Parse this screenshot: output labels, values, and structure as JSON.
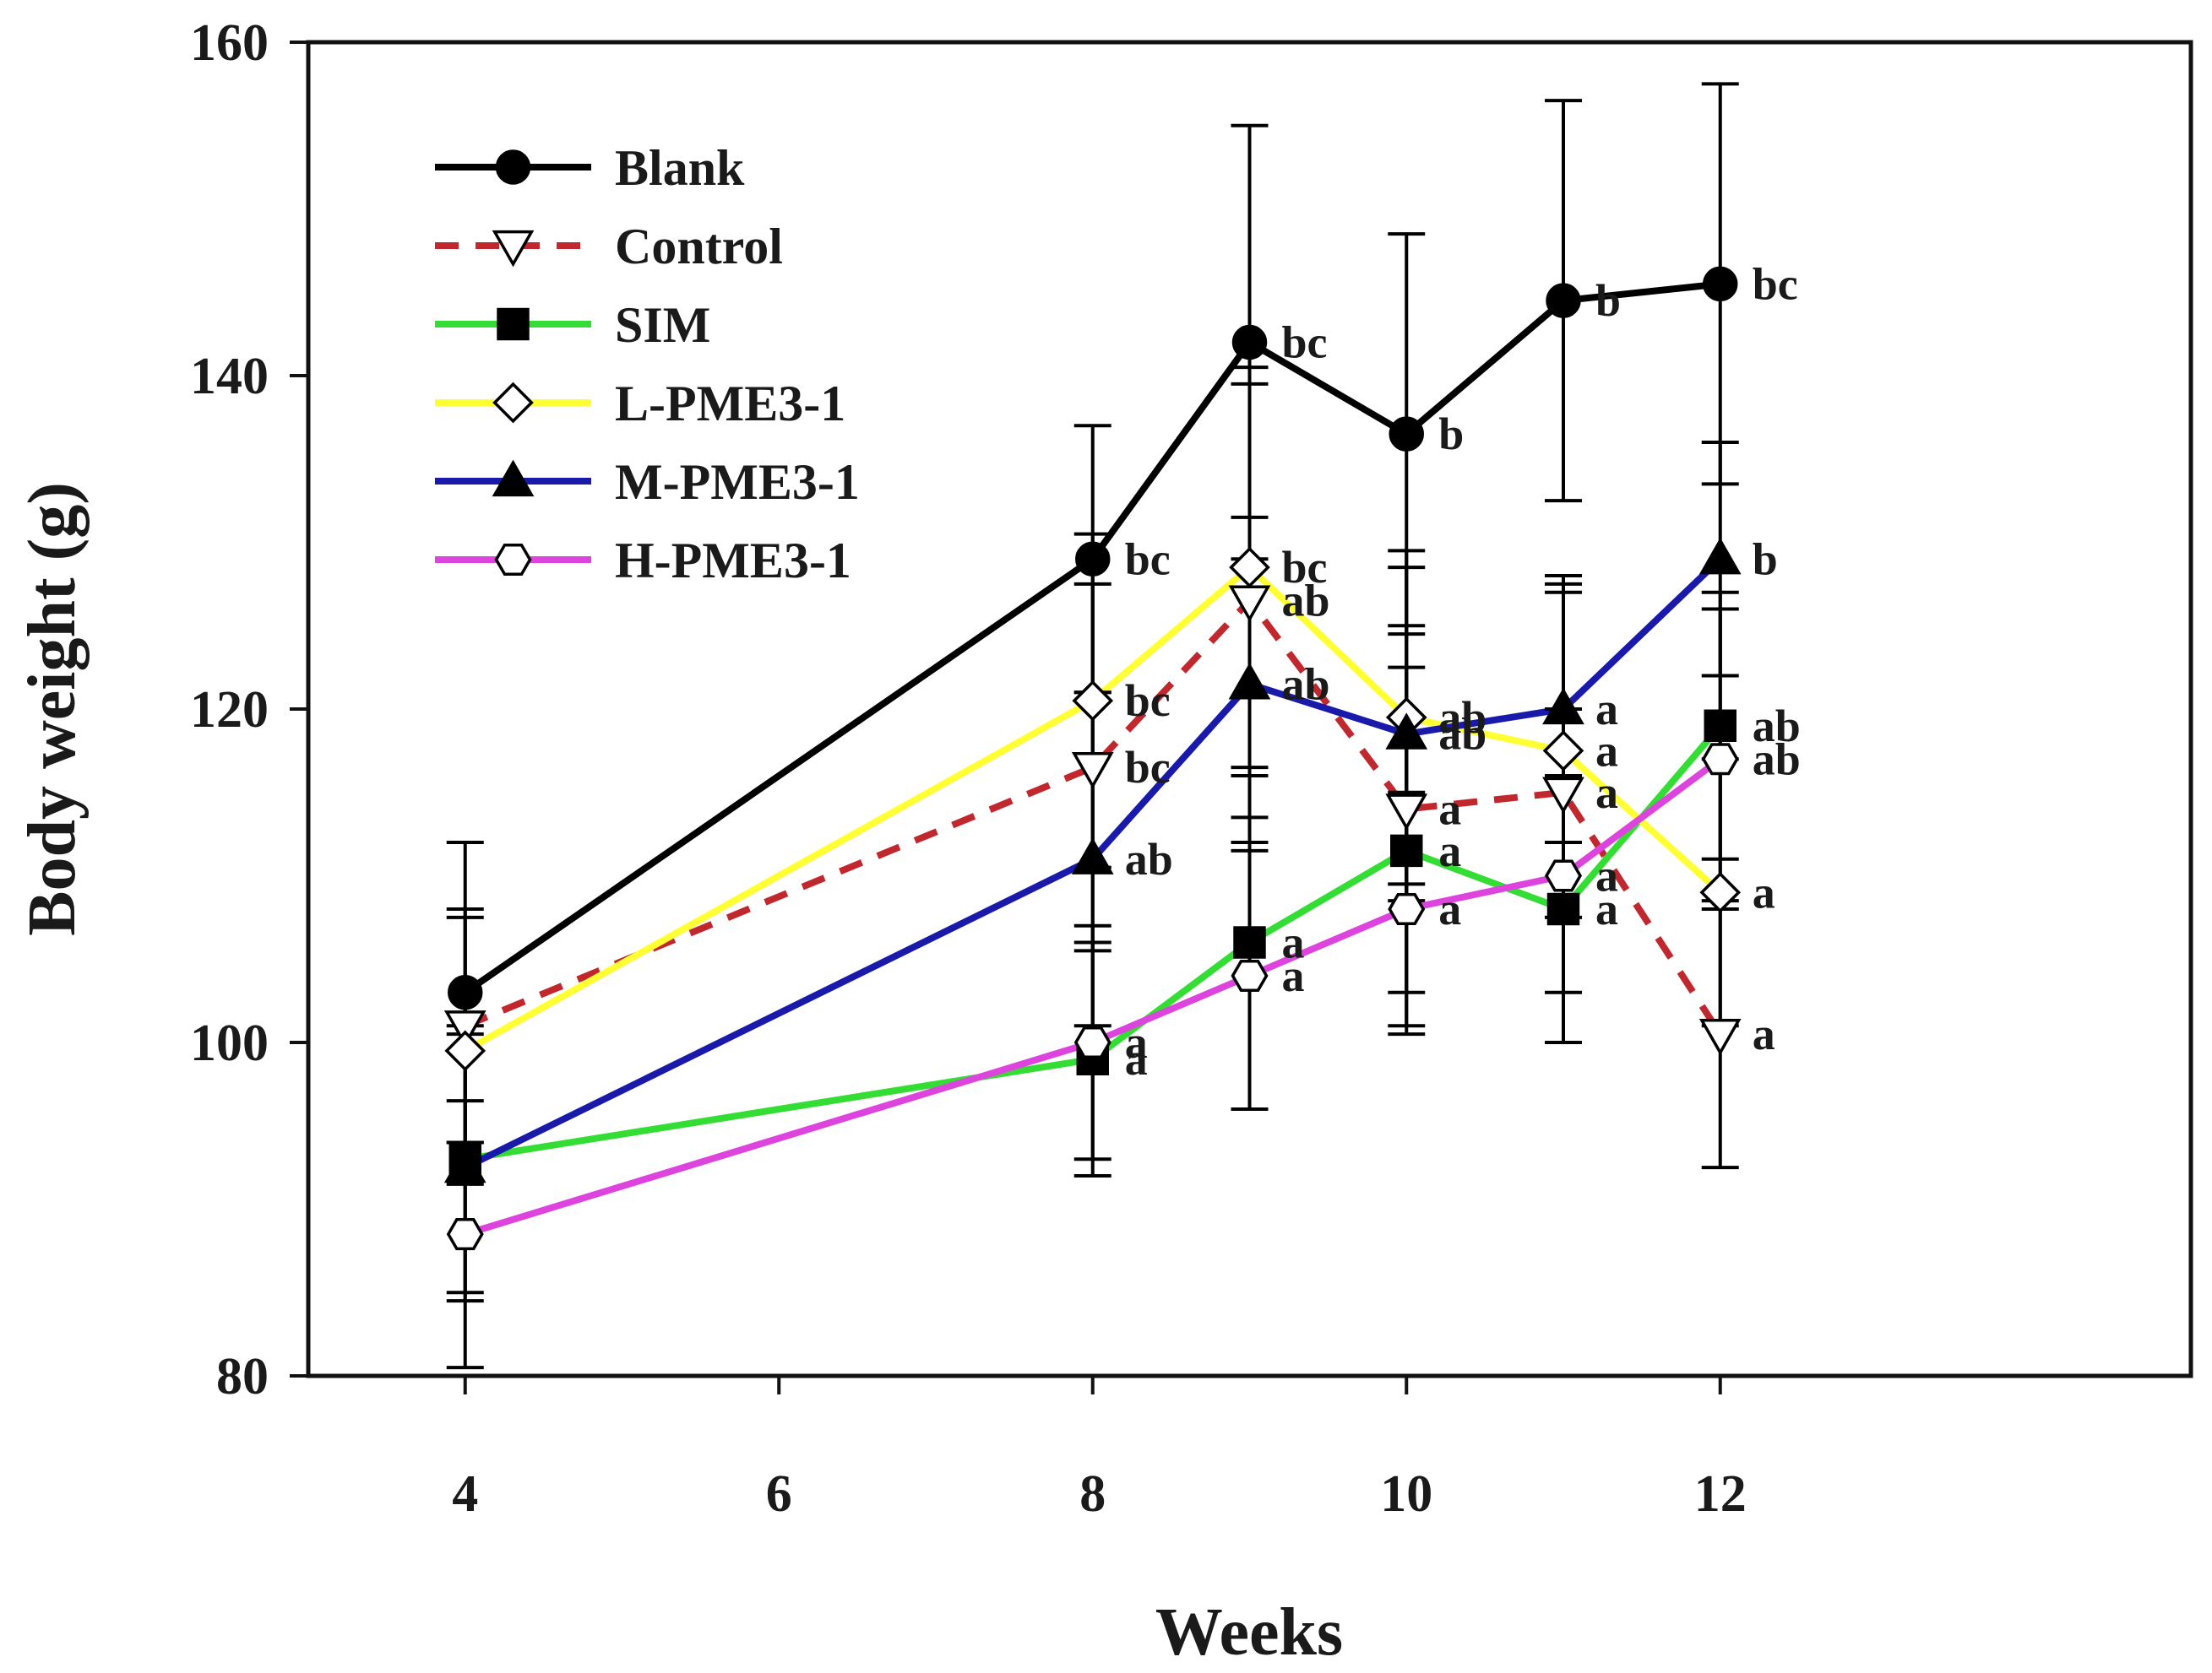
{
  "chart_data": {
    "type": "line",
    "title": "",
    "xlabel": "Weeks",
    "ylabel": "Body weight (g)",
    "xlim": [
      3,
      15
    ],
    "ylim": [
      80,
      160
    ],
    "xticks": [
      4,
      6,
      8,
      10,
      12
    ],
    "yticks": [
      80,
      100,
      120,
      140,
      160
    ],
    "x": [
      4,
      8,
      9,
      10,
      11,
      12
    ],
    "legend_position": "top-left",
    "grid": false,
    "series": [
      {
        "name": "Blank",
        "color": "#000000",
        "dash": "solid",
        "marker": "circle-filled",
        "values": [
          103,
          129,
          142,
          136.5,
          144.5,
          145.5
        ],
        "errors": [
          9,
          8,
          13,
          12,
          12,
          12
        ],
        "labels": [
          "",
          "bc",
          "bc",
          "b",
          "b",
          "bc"
        ]
      },
      {
        "name": "Control",
        "color": "#c0282d",
        "dash": "dashed",
        "marker": "triangle-down-open",
        "values": [
          101,
          116.5,
          126.5,
          114,
          115,
          100.5
        ],
        "errors": [
          7,
          11,
          13,
          11,
          12,
          8
        ],
        "labels": [
          "",
          "bc",
          "ab",
          "a",
          "a",
          "a"
        ]
      },
      {
        "name": "SIM",
        "color": "#33dd33",
        "dash": "solid",
        "marker": "square-filled",
        "values": [
          93,
          99,
          106,
          111.5,
          108,
          119
        ],
        "errors": [
          8,
          7,
          10,
          11,
          8,
          8
        ],
        "labels": [
          "",
          "a",
          "a",
          "a",
          "a",
          "ab"
        ]
      },
      {
        "name": "L-PME3-1",
        "color": "#ffff33",
        "dash": "solid",
        "marker": "diamond-open",
        "values": [
          99.5,
          120.5,
          128.5,
          119.5,
          117.5,
          109
        ],
        "errors": [
          8,
          10,
          12,
          10,
          10,
          8
        ],
        "labels": [
          "",
          "bc",
          "bc",
          "ab",
          "a",
          "a"
        ]
      },
      {
        "name": "M-PME3-1",
        "color": "#1a1aaa",
        "dash": "solid",
        "marker": "triangle-up-filled",
        "values": [
          92.5,
          111,
          121.5,
          118.5,
          120,
          129
        ],
        "errors": [
          8,
          10,
          10,
          10,
          8,
          7
        ],
        "labels": [
          "",
          "ab",
          "ab",
          "ab",
          "a",
          "b"
        ]
      },
      {
        "name": "H-PME3-1",
        "color": "#dd44dd",
        "dash": "solid",
        "marker": "hexagon-open",
        "values": [
          88.5,
          100,
          104,
          108,
          110,
          117
        ],
        "errors": [
          8,
          7,
          8,
          7,
          10,
          9
        ],
        "labels": [
          "",
          "a",
          "a",
          "a",
          "a",
          "ab"
        ]
      }
    ]
  }
}
